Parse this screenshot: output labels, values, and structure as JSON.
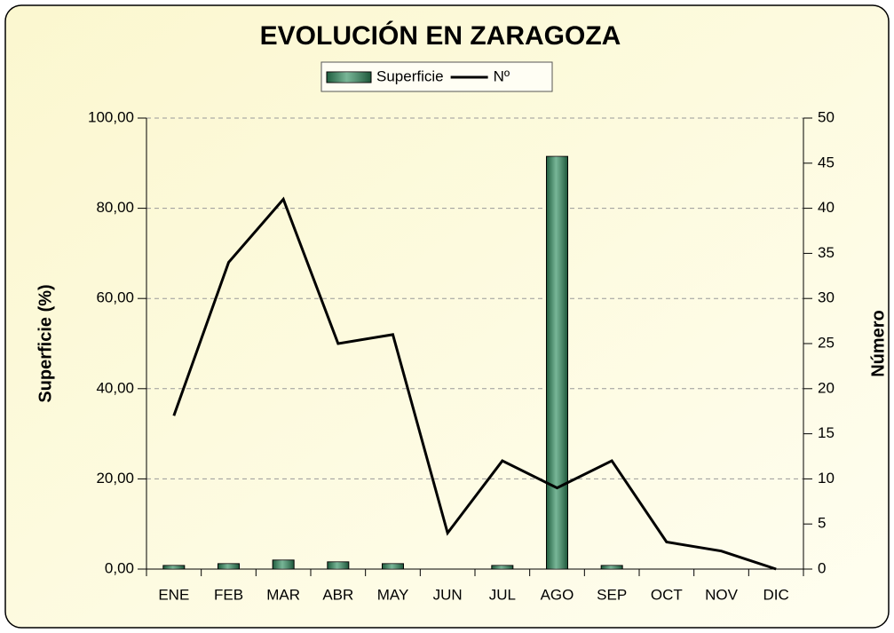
{
  "chart_data": {
    "type": "bar_line",
    "title": "EVOLUCIÓN EN ZARAGOZA",
    "y_label": "Superficie (%)",
    "y2_label": "Número",
    "categories": [
      "ENE",
      "FEB",
      "MAR",
      "ABR",
      "MAY",
      "JUN",
      "JUL",
      "AGO",
      "SEP",
      "OCT",
      "NOV",
      "DIC"
    ],
    "series": [
      {
        "name": "Superficie",
        "type": "bar",
        "color": "#2f8f5f",
        "axis": "y",
        "values": [
          0.8,
          1.2,
          2.0,
          1.6,
          1.2,
          0,
          0.8,
          91.5,
          0.8,
          0,
          0,
          0
        ]
      },
      {
        "name": "Nº",
        "type": "line",
        "color": "#000000",
        "axis": "y2",
        "values": [
          17,
          34,
          41,
          25,
          26,
          4,
          12,
          9,
          12,
          3,
          2,
          0
        ]
      }
    ],
    "ylim": [
      0,
      100
    ],
    "yticks": [
      {
        "value": 0,
        "label": "0,00"
      },
      {
        "value": 20,
        "label": "20,00"
      },
      {
        "value": 40,
        "label": "40,00"
      },
      {
        "value": 60,
        "label": "60,00"
      },
      {
        "value": 80,
        "label": "80,00"
      },
      {
        "value": 100,
        "label": "100,00"
      }
    ],
    "y2lim": [
      0,
      50
    ],
    "y2ticks": [
      0,
      5,
      10,
      15,
      20,
      25,
      30,
      35,
      40,
      45,
      50
    ],
    "grid": true,
    "legend": "top"
  }
}
